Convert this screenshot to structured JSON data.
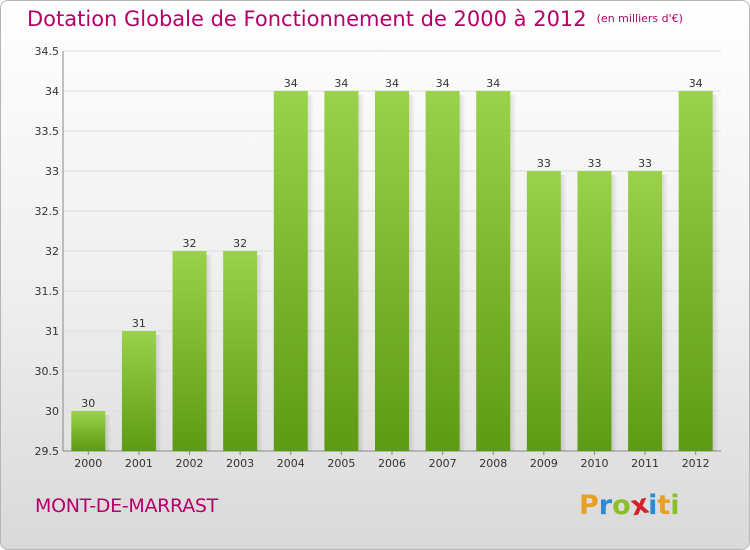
{
  "header": {
    "title": "Dotation Globale de Fonctionnement de 2000 à 2012",
    "unit": "(en milliers d'€)"
  },
  "footer": {
    "place": "MONT-DE-MARRAST",
    "logo": {
      "letters": [
        "P",
        "r",
        "o",
        "x",
        "i",
        "t",
        "i"
      ],
      "colors": [
        "#e8a020",
        "#2a8ad4",
        "#8abf2a",
        "#d4202a",
        "#2a8ad4",
        "#e8a020",
        "#8abf2a"
      ]
    }
  },
  "colors": {
    "bar_top": "#9ad24a",
    "bar_bottom": "#5e9a14",
    "text": "#b5006a",
    "grid": "#dddddd"
  },
  "chart_data": {
    "type": "bar",
    "title": "Dotation Globale de Fonctionnement de 2000 à 2012",
    "subtitle": "(en milliers d'€)",
    "categories": [
      "2000",
      "2001",
      "2002",
      "2003",
      "2004",
      "2005",
      "2006",
      "2007",
      "2008",
      "2009",
      "2010",
      "2011",
      "2012"
    ],
    "values": [
      30,
      31,
      32,
      32,
      34,
      34,
      34,
      34,
      34,
      33,
      33,
      33,
      34
    ],
    "data_labels": [
      "30",
      "31",
      "32",
      "32",
      "34",
      "34",
      "34",
      "34",
      "34",
      "33",
      "33",
      "33",
      "34"
    ],
    "ylim": [
      29.5,
      34.5
    ],
    "yticks": [
      29.5,
      30,
      30.5,
      31,
      31.5,
      32,
      32.5,
      33,
      33.5,
      34,
      34.5
    ],
    "ytick_labels": [
      "29.5",
      "30",
      "30.5",
      "31",
      "31.5",
      "32",
      "32.5",
      "33",
      "33.5",
      "34",
      "34.5"
    ],
    "grid": true,
    "legend": "none"
  }
}
